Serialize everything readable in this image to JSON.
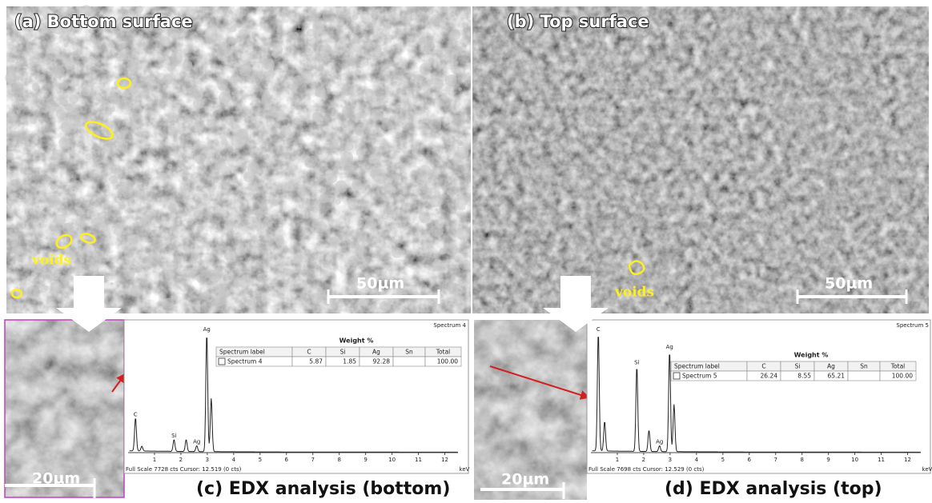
{
  "panels": [
    {
      "label": "(a) Bottom surface",
      "scale_bar": "50µm",
      "annotation": "voids"
    },
    {
      "label": "(b) Top surface",
      "scale_bar": "50µm",
      "annotation": "voids"
    },
    {
      "label": "(c) EDX analysis (bottom)",
      "scale_bar": "20µm",
      "spectrum": {
        "title": "Spectrum 4",
        "group_header": "Weight %",
        "headers": [
          "Spectrum label",
          "C",
          "Si",
          "Ag",
          "Sn",
          "Total"
        ],
        "row": [
          "Spectrum 4",
          "5.87",
          "1.85",
          "92.28",
          null,
          "100.00"
        ],
        "peak_labels": [
          "Ag",
          "C",
          "Si",
          "Ag"
        ],
        "x_ticks": [
          "1",
          "2",
          "3",
          "4",
          "5",
          "6",
          "7",
          "8",
          "9",
          "10",
          "11",
          "12"
        ],
        "x_unit": "keV",
        "footer": "Full Scale 7728 cts Cursor: 12.519 (0 cts)"
      }
    },
    {
      "label": "(d) EDX analysis (top)",
      "scale_bar": "20µm",
      "spectrum": {
        "title": "Spectrum 5",
        "group_header": "Weight %",
        "headers": [
          "Spectrum label",
          "C",
          "Si",
          "Ag",
          "Sn",
          "Total"
        ],
        "row": [
          "Spectrum 5",
          "26.24",
          "8.55",
          "65.21",
          null,
          "100.00"
        ],
        "peak_labels": [
          "C",
          "Si",
          "Ag",
          "Ag"
        ],
        "x_ticks": [
          "1",
          "2",
          "3",
          "4",
          "5",
          "6",
          "7",
          "8",
          "9",
          "10",
          "11",
          "12"
        ],
        "x_unit": "keV",
        "footer": "Full Scale 7698 cts Cursor: 12.529 (0 cts)"
      }
    }
  ]
}
